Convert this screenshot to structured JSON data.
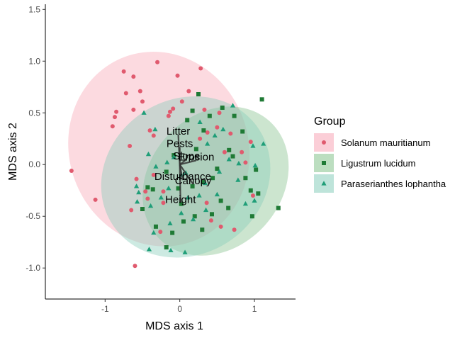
{
  "chart_data": {
    "type": "scatter",
    "xlabel": "MDS axis 1",
    "ylabel": "MDS axis 2",
    "xlim": [
      -1.8,
      1.55
    ],
    "ylim": [
      -1.3,
      1.55
    ],
    "x_ticks": [
      -1,
      0,
      1
    ],
    "y_ticks": [
      -1.0,
      -0.5,
      0.0,
      0.5,
      1.0,
      1.5
    ],
    "x_tick_labels": [
      "-1",
      "0",
      "1"
    ],
    "y_tick_labels": [
      "-1.0",
      "-0.5",
      "0.0",
      "0.5",
      "1.0",
      "1.5"
    ],
    "grid": false,
    "legend_position": "right",
    "legend_title": "Group",
    "series": [
      {
        "name": "Solanum mauritianum",
        "marker": "circle",
        "color": "#e05a6e",
        "fill": "#f4a6b4",
        "points": [
          [
            -1.45,
            -0.06
          ],
          [
            -1.13,
            -0.34
          ],
          [
            -0.75,
            0.9
          ],
          [
            -0.62,
            0.85
          ],
          [
            -0.3,
            0.99
          ],
          [
            -0.03,
            0.86
          ],
          [
            0.28,
            0.93
          ],
          [
            -0.72,
            0.69
          ],
          [
            -0.53,
            0.71
          ],
          [
            -0.5,
            0.61
          ],
          [
            -0.62,
            0.53
          ],
          [
            -0.85,
            0.51
          ],
          [
            -0.9,
            0.37
          ],
          [
            -0.87,
            0.46
          ],
          [
            -0.67,
            0.18
          ],
          [
            -0.35,
            0.28
          ],
          [
            -0.4,
            0.33
          ],
          [
            -0.13,
            0.51
          ],
          [
            -0.09,
            0.54
          ],
          [
            -0.15,
            0.47
          ],
          [
            -0.58,
            -0.14
          ],
          [
            -0.46,
            -0.26
          ],
          [
            -0.35,
            -0.1
          ],
          [
            -0.22,
            -0.26
          ],
          [
            -0.65,
            -0.44
          ],
          [
            -0.43,
            -0.33
          ],
          [
            -0.22,
            -0.37
          ],
          [
            -0.26,
            -0.65
          ],
          [
            0.03,
            0.61
          ],
          [
            0.12,
            0.71
          ],
          [
            0.33,
            0.53
          ],
          [
            0.37,
            0.31
          ],
          [
            0.27,
            0.25
          ],
          [
            0.5,
            0.36
          ],
          [
            0.53,
            0.5
          ],
          [
            0.68,
            0.3
          ],
          [
            0.83,
            0.12
          ],
          [
            0.88,
            0.02
          ],
          [
            0.36,
            -0.37
          ],
          [
            0.42,
            -0.54
          ],
          [
            0.55,
            -0.6
          ],
          [
            0.73,
            -0.63
          ],
          [
            0.95,
            0.22
          ],
          [
            0.98,
            -0.3
          ],
          [
            0.6,
            0.12
          ],
          [
            -0.6,
            -0.98
          ]
        ]
      },
      {
        "name": "Ligustrum lucidum",
        "marker": "square",
        "color": "#1f7a35",
        "fill": "#8ec79a",
        "points": [
          [
            1.1,
            0.63
          ],
          [
            1.32,
            -0.42
          ],
          [
            0.97,
            -0.5
          ],
          [
            0.95,
            -0.25
          ],
          [
            1.05,
            -0.28
          ],
          [
            0.65,
            -0.42
          ],
          [
            0.55,
            -0.35
          ],
          [
            0.43,
            -0.48
          ],
          [
            0.3,
            -0.63
          ],
          [
            0.2,
            -0.5
          ],
          [
            0.05,
            -0.55
          ],
          [
            -0.1,
            -0.66
          ],
          [
            -0.32,
            -0.6
          ],
          [
            -0.5,
            -0.43
          ],
          [
            -0.43,
            -0.22
          ],
          [
            -0.36,
            -0.24
          ],
          [
            -0.18,
            -0.07
          ],
          [
            -0.02,
            -0.23
          ],
          [
            0.17,
            -0.21
          ],
          [
            0.31,
            -0.17
          ],
          [
            0.44,
            -0.13
          ],
          [
            0.5,
            -0.04
          ],
          [
            0.71,
            0.08
          ],
          [
            0.66,
            0.14
          ],
          [
            0.22,
            0.15
          ],
          [
            0.32,
            0.33
          ],
          [
            0.4,
            0.47
          ],
          [
            0.25,
            0.68
          ],
          [
            0.57,
            0.55
          ],
          [
            0.73,
            0.47
          ],
          [
            0.84,
            0.32
          ],
          [
            0.1,
            0.43
          ],
          [
            0.17,
            0.52
          ],
          [
            -0.08,
            0.09
          ],
          [
            0.02,
            -0.38
          ],
          [
            -0.18,
            -0.8
          ],
          [
            0.88,
            -0.13
          ],
          [
            1.02,
            -0.05
          ]
        ]
      },
      {
        "name": "Paraserianthes lophantha",
        "marker": "triangle",
        "color": "#1f9e78",
        "fill": "#8fd3c0",
        "points": [
          [
            1.12,
            0.2
          ],
          [
            1.01,
            -0.01
          ],
          [
            0.98,
            0.18
          ],
          [
            0.71,
            0.57
          ],
          [
            0.53,
            -0.07
          ],
          [
            0.34,
            -0.18
          ],
          [
            0.5,
            -0.29
          ],
          [
            0.35,
            -0.44
          ],
          [
            0.18,
            -0.53
          ],
          [
            -0.13,
            -0.57
          ],
          [
            -0.41,
            -0.82
          ],
          [
            -0.35,
            -0.66
          ],
          [
            -0.57,
            -0.36
          ],
          [
            -0.58,
            -0.21
          ],
          [
            -0.55,
            -0.27
          ],
          [
            -0.32,
            -0.02
          ],
          [
            -0.17,
            0.02
          ],
          [
            -0.08,
            0.07
          ],
          [
            0.02,
            -0.1
          ],
          [
            0.08,
            -0.08
          ],
          [
            0.27,
            0.41
          ],
          [
            0.47,
            0.28
          ],
          [
            0.58,
            0.34
          ],
          [
            0.66,
            0.05
          ],
          [
            0.78,
            -0.15
          ],
          [
            -0.48,
            0.5
          ],
          [
            -0.33,
            0.34
          ],
          [
            -0.42,
            0.1
          ],
          [
            -0.39,
            -0.4
          ],
          [
            0.07,
            -0.85
          ],
          [
            -0.12,
            -0.83
          ],
          [
            -0.25,
            -0.32
          ],
          [
            0.02,
            -0.47
          ],
          [
            0.11,
            -0.32
          ],
          [
            -0.15,
            -0.23
          ],
          [
            0.26,
            -0.3
          ],
          [
            0.37,
            0.2
          ],
          [
            0.88,
            -0.38
          ],
          [
            0.79,
            0.01
          ],
          [
            1.0,
            -0.35
          ]
        ]
      }
    ],
    "ellipses": [
      {
        "series": "Solanum mauritianum",
        "cx": -0.28,
        "cy": 0.15,
        "rx": 1.2,
        "ry": 0.95,
        "rotate": -20,
        "fill": "#f7a6b6"
      },
      {
        "series": "Ligustrum lucidum",
        "cx": 0.48,
        "cy": -0.16,
        "rx": 1.08,
        "ry": 0.64,
        "rotate": -48,
        "fill": "#85c28d"
      },
      {
        "series": "Paraserianthes lophantha",
        "cx": 0.08,
        "cy": -0.12,
        "rx": 1.17,
        "ry": 0.75,
        "rotate": -33,
        "fill": "#89cdbb"
      }
    ],
    "vectors": [
      {
        "label": "Litter",
        "x": -0.02,
        "y": 0.29
      },
      {
        "label": "Pests",
        "x": 0.0,
        "y": 0.17
      },
      {
        "label": "Slope",
        "x": 0.09,
        "y": 0.05
      },
      {
        "label": "Erosion",
        "x": 0.22,
        "y": 0.04
      },
      {
        "label": "Disturbance",
        "x": 0.04,
        "y": -0.15
      },
      {
        "label": "Canopy",
        "x": 0.18,
        "y": -0.19
      },
      {
        "label": "Height",
        "x": 0.01,
        "y": -0.37
      }
    ]
  }
}
